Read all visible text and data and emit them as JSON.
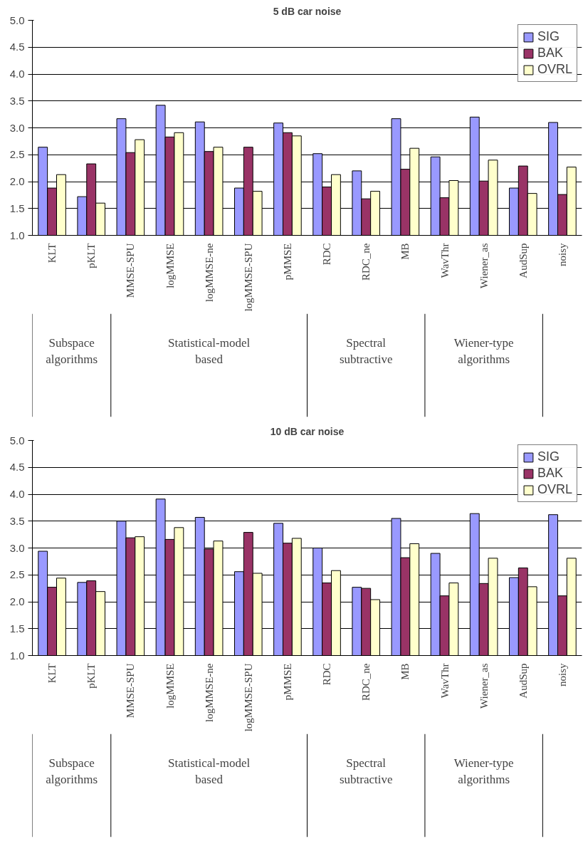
{
  "chart_data": [
    {
      "type": "bar",
      "title": "5 dB car noise",
      "categories": [
        "KLT",
        "pKLT",
        "MMSE-SPU",
        "logMMSE",
        "logMMSE-ne",
        "logMMSE-SPU",
        "pMMSE",
        "RDC",
        "RDC_ne",
        "MB",
        "WavThr",
        "Wiener_as",
        "AudSup",
        "noisy"
      ],
      "series": [
        {
          "name": "SIG",
          "color": "#9999ff",
          "values": [
            2.64,
            1.72,
            3.17,
            3.42,
            3.11,
            1.88,
            3.09,
            2.52,
            2.2,
            3.17,
            2.46,
            3.2,
            1.88,
            3.1
          ]
        },
        {
          "name": "BAK",
          "color": "#993366",
          "values": [
            1.88,
            2.33,
            2.54,
            2.83,
            2.56,
            2.64,
            2.91,
            1.9,
            1.68,
            2.23,
            1.7,
            2.01,
            2.29,
            1.76
          ]
        },
        {
          "name": "OVRL",
          "color": "#ffffcc",
          "values": [
            2.13,
            1.6,
            2.78,
            2.91,
            2.64,
            1.82,
            2.85,
            2.13,
            1.82,
            2.62,
            2.02,
            2.4,
            1.78,
            2.27
          ]
        }
      ],
      "ylim": [
        1,
        5
      ],
      "yticks": [
        {
          "value": 1,
          "label": "1.0"
        },
        {
          "value": 1.5,
          "label": "1.5"
        },
        {
          "value": 2,
          "label": "2.0"
        },
        {
          "value": 2.5,
          "label": "2.5"
        },
        {
          "value": 3,
          "label": "3.0"
        },
        {
          "value": 3.5,
          "label": "3.5"
        },
        {
          "value": 4,
          "label": "4.0"
        },
        {
          "value": 4.5,
          "label": "4.5"
        },
        {
          "value": 5,
          "label": "5.0"
        }
      ],
      "grid": "y",
      "legend": "top right",
      "annotations": [
        "Subspace algorithms",
        "Statistical-model based",
        "Spectral subtractive",
        "Wiener-type algorithms"
      ]
    },
    {
      "type": "bar",
      "title": "10 dB car noise",
      "categories": [
        "KLT",
        "pKLT",
        "MMSE-SPU",
        "logMMSE",
        "logMMSE-ne",
        "logMMSE-SPU",
        "pMMSE",
        "RDC",
        "RDC_ne",
        "MB",
        "WavThr",
        "Wiener_as",
        "AudSup",
        "noisy"
      ],
      "series": [
        {
          "name": "SIG",
          "color": "#9999ff",
          "values": [
            2.94,
            2.36,
            3.5,
            3.91,
            3.57,
            2.56,
            3.46,
            3.0,
            2.27,
            3.55,
            2.9,
            3.64,
            2.45,
            3.62
          ]
        },
        {
          "name": "BAK",
          "color": "#993366",
          "values": [
            2.27,
            2.39,
            3.19,
            3.16,
            2.98,
            3.29,
            3.09,
            2.35,
            2.25,
            2.82,
            2.11,
            2.34,
            2.63,
            2.11
          ]
        },
        {
          "name": "OVRL",
          "color": "#ffffcc",
          "values": [
            2.44,
            2.19,
            3.21,
            3.38,
            3.13,
            2.53,
            3.18,
            2.58,
            2.04,
            3.08,
            2.35,
            2.81,
            2.28,
            2.81
          ]
        }
      ],
      "ylim": [
        1,
        5
      ],
      "yticks": [
        {
          "value": 1,
          "label": "1.0"
        },
        {
          "value": 1.5,
          "label": "1.5"
        },
        {
          "value": 2,
          "label": "2.0"
        },
        {
          "value": 2.5,
          "label": "2.5"
        },
        {
          "value": 3,
          "label": "3.0"
        },
        {
          "value": 3.5,
          "label": "3.5"
        },
        {
          "value": 4,
          "label": "4.0"
        },
        {
          "value": 4.5,
          "label": "4.5"
        },
        {
          "value": 5,
          "label": "5.0"
        }
      ],
      "grid": "y",
      "legend": "top right",
      "annotations": [
        "Subspace algorithms",
        "Statistical-model based",
        "Spectral subtractive",
        "Wiener-type algorithms"
      ]
    }
  ]
}
